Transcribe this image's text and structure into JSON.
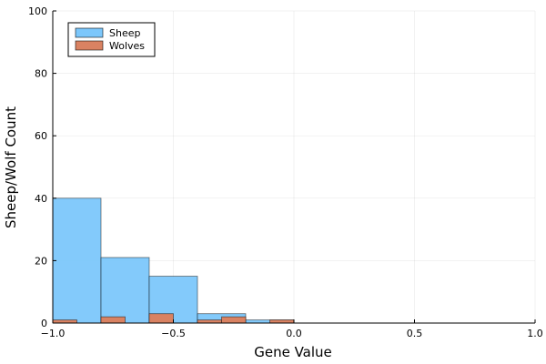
{
  "chart_data": {
    "type": "bar",
    "title": "",
    "xlabel": "Gene Value",
    "ylabel": "Sheep/Wolf Count",
    "xlim": [
      -1.0,
      1.0
    ],
    "ylim": [
      0,
      100
    ],
    "xticks": [
      -1.0,
      -0.5,
      0.0,
      0.5,
      1.0
    ],
    "xtick_labels": [
      "−1.0",
      "−0.5",
      "0.0",
      "0.5",
      "1.0"
    ],
    "yticks": [
      0,
      20,
      40,
      60,
      80,
      100
    ],
    "ytick_labels": [
      "0",
      "20",
      "40",
      "60",
      "80",
      "100"
    ],
    "grid": true,
    "legend_position": "top-left",
    "series": [
      {
        "name": "Sheep",
        "color": "#7cc7fb",
        "bins": [
          {
            "x0": -1.0,
            "x1": -0.8,
            "value": 40
          },
          {
            "x0": -0.8,
            "x1": -0.6,
            "value": 21
          },
          {
            "x0": -0.6,
            "x1": -0.4,
            "value": 15
          },
          {
            "x0": -0.4,
            "x1": -0.2,
            "value": 3
          },
          {
            "x0": -0.2,
            "x1": 0.0,
            "value": 1
          }
        ]
      },
      {
        "name": "Wolves",
        "color": "#d98262",
        "bins": [
          {
            "x0": -1.0,
            "x1": -0.9,
            "value": 1
          },
          {
            "x0": -0.8,
            "x1": -0.7,
            "value": 2
          },
          {
            "x0": -0.6,
            "x1": -0.5,
            "value": 3
          },
          {
            "x0": -0.4,
            "x1": -0.3,
            "value": 1
          },
          {
            "x0": -0.3,
            "x1": -0.2,
            "value": 2
          },
          {
            "x0": -0.1,
            "x1": 0.0,
            "value": 1
          }
        ]
      }
    ]
  }
}
